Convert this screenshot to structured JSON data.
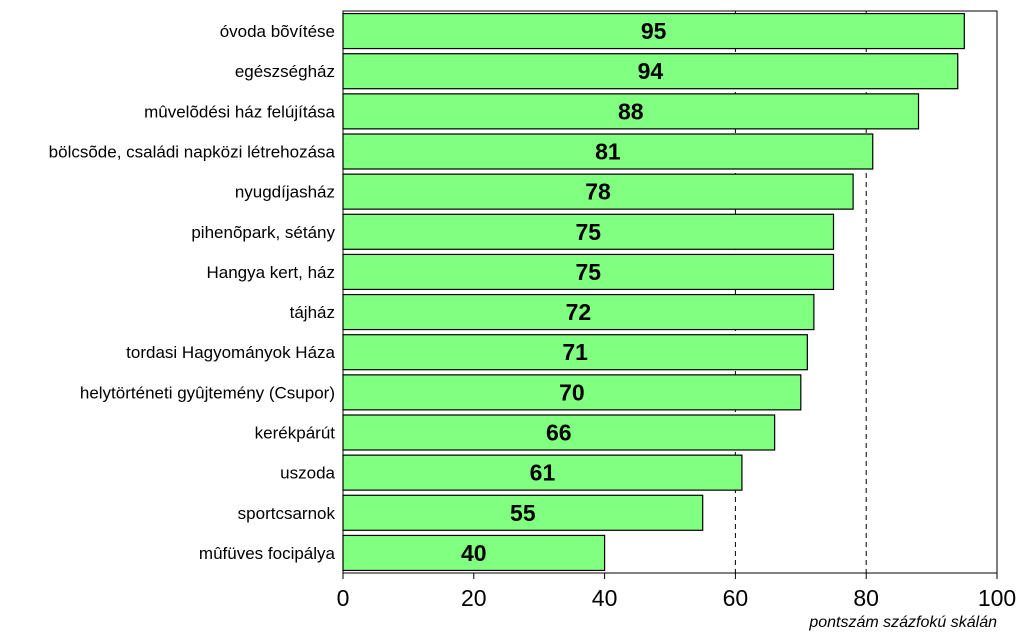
{
  "chart_data": {
    "type": "bar",
    "orientation": "horizontal",
    "categories": [
      "óvoda bõvítése",
      "egészségház",
      "mûvelõdési ház felújítása",
      "bölcsõde, családi napközi létrehozása",
      "nyugdíjasház",
      "pihenõpark, sétány",
      "Hangya kert, ház",
      "tájház",
      "tordasi Hagyományok Háza",
      "helytörténeti gyûjtemény (Csupor)",
      "kerékpárút",
      "uszoda",
      "sportcsarnok",
      "mûfüves focipálya"
    ],
    "values": [
      95,
      94,
      88,
      81,
      78,
      75,
      75,
      72,
      71,
      70,
      66,
      61,
      55,
      40
    ],
    "xlim": [
      0,
      100
    ],
    "xticks": [
      "0",
      "20",
      "40",
      "60",
      "80",
      "100"
    ],
    "xlabel": "pontszám százfokú skálán",
    "reference_lines": [
      60,
      80
    ],
    "bar_color": "#80ff80",
    "bar_edge_color": "#000000"
  }
}
